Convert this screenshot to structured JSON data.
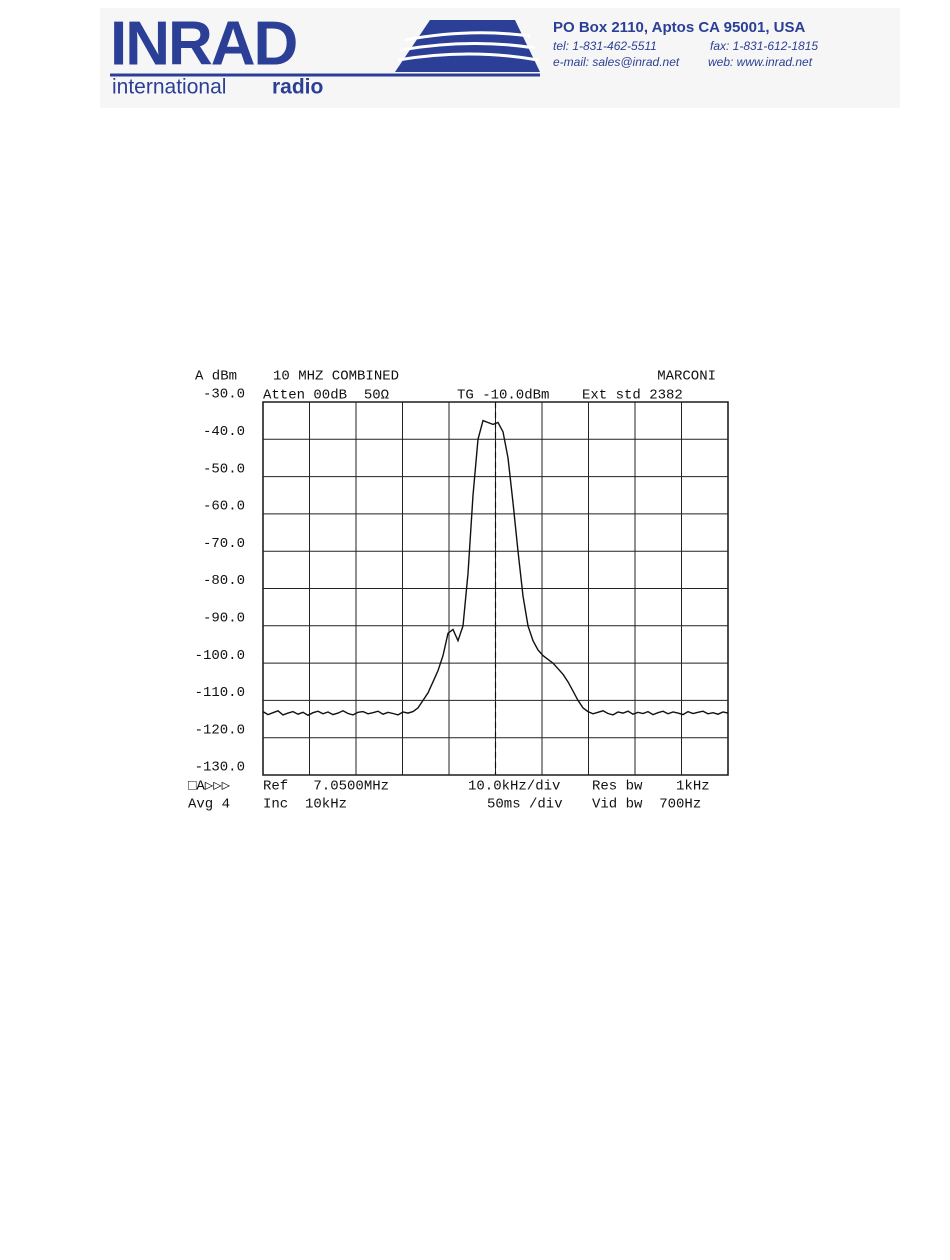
{
  "header": {
    "logo": "INRAD",
    "tagline_light": "international",
    "tagline_bold": "radio",
    "address": "PO Box 2110, Aptos CA 95001, USA",
    "tel": "tel: 1-831-462-5511",
    "fax": "fax: 1-831-612-1815",
    "email": "e-mail: sales@inrad.net",
    "web": "web: www.inrad.net"
  },
  "chart_data": {
    "type": "line",
    "title": "10 MHZ COMBINED",
    "y_label": "A dBm",
    "annotations": [
      "MARCONI",
      "Atten 00dB  50Ω",
      "TG -10.0dBm",
      "Ext std 2382",
      "□A▷▷▷",
      "Ref   7.0500MHz",
      "10.0kHz/div",
      "Res bw    1kHz",
      "Avg 4",
      "Inc  10kHz",
      "50ms /div",
      "Vid bw  700Hz"
    ],
    "ylim": [
      -130,
      -30
    ],
    "yticks": [
      {
        "value": -30,
        "label": "-30.0"
      },
      {
        "value": -40,
        "label": "-40.0"
      },
      {
        "value": -50,
        "label": "-50.0"
      },
      {
        "value": -60,
        "label": "-60.0"
      },
      {
        "value": -70,
        "label": "-70.0"
      },
      {
        "value": -80,
        "label": "-80.0"
      },
      {
        "value": -90,
        "label": "-90.0"
      },
      {
        "value": -100,
        "label": "-100.0"
      },
      {
        "value": -110,
        "label": "-110.0"
      },
      {
        "value": -120,
        "label": "-120.0"
      },
      {
        "value": -130,
        "label": "-130.0"
      }
    ],
    "grid": true,
    "color": "#111111",
    "values": [
      -113,
      -113.8,
      -113.3,
      -112.8,
      -113.9,
      -113.4,
      -113,
      -113.7,
      -113.2,
      -114,
      -113.3,
      -112.9,
      -113.6,
      -113.1,
      -113.8,
      -113.4,
      -112.8,
      -113.5,
      -113.9,
      -113.2,
      -113,
      -113.6,
      -113.3,
      -112.9,
      -113.7,
      -113.2,
      -113.5,
      -113.9,
      -113.1,
      -113.4,
      -113,
      -112,
      -110,
      -108,
      -105,
      -102,
      -98,
      -92,
      -91,
      -94,
      -90,
      -76,
      -55,
      -40,
      -35,
      -35.5,
      -36,
      -35.5,
      -38,
      -45,
      -57,
      -70,
      -82,
      -90,
      -94,
      -96.5,
      -98,
      -99,
      -100,
      -101.5,
      -103,
      -105,
      -107.5,
      -110,
      -112,
      -113,
      -113.6,
      -113.2,
      -112.8,
      -113.5,
      -113.9,
      -113.1,
      -113.4,
      -112.9,
      -113.7,
      -113.2,
      -113.5,
      -113,
      -113.8,
      -113.3,
      -112.9,
      -113.6,
      -113.1,
      -113.4,
      -113.8,
      -113,
      -113.5,
      -113.2,
      -112.9,
      -113.6,
      -113.3,
      -113.7,
      -113.1,
      -113.4
    ]
  }
}
